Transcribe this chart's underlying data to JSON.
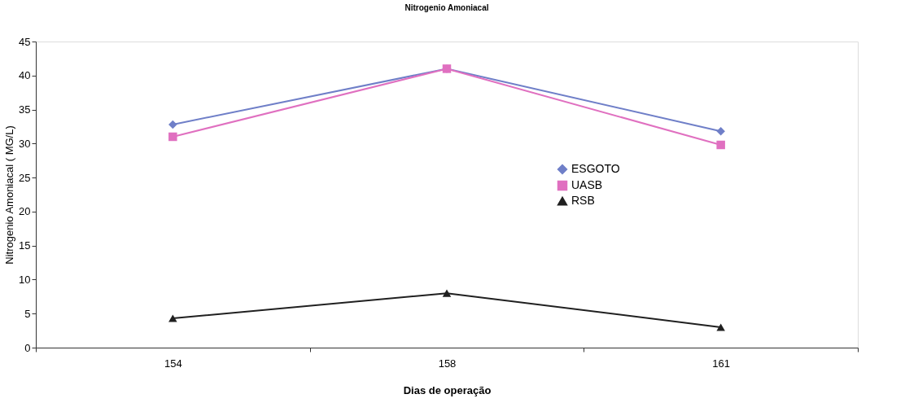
{
  "chart_data": {
    "type": "line",
    "title": "Nitrogenio Amoniacal",
    "xlabel": "Dias de operação",
    "ylabel": "Nitrogenio Amoniacal ( MG/L)",
    "categories": [
      "154",
      "158",
      "161"
    ],
    "series": [
      {
        "name": "ESGOTO",
        "color": "#6f7fc8",
        "marker": "diamond",
        "values": [
          32.8,
          41,
          31.8
        ]
      },
      {
        "name": "UASB",
        "color": "#e070c0",
        "marker": "square",
        "values": [
          31,
          41,
          29.8
        ]
      },
      {
        "name": "RSB",
        "color": "#202020",
        "marker": "triangle",
        "values": [
          4.3,
          8,
          3
        ]
      }
    ],
    "ylim": [
      0,
      45
    ],
    "yticks": [
      0,
      5,
      10,
      15,
      20,
      25,
      30,
      35,
      40,
      45
    ],
    "grid": false,
    "legend": "right",
    "line_style": "solid"
  }
}
